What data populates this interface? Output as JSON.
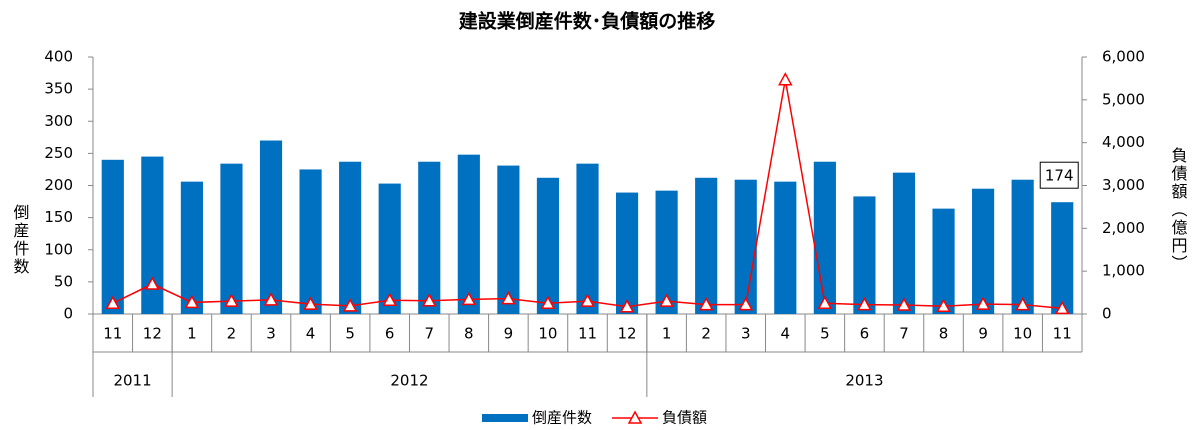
{
  "chart_data": {
    "type": "bar_line",
    "title": "建設業倒産件数･負債額の推移",
    "y_label": "倒産件数",
    "y2_label": "負債額（億円）",
    "categories": [
      "11",
      "12",
      "1",
      "2",
      "3",
      "4",
      "5",
      "6",
      "7",
      "8",
      "9",
      "10",
      "11",
      "12",
      "1",
      "2",
      "3",
      "4",
      "5",
      "6",
      "7",
      "8",
      "9",
      "10",
      "11"
    ],
    "x_groups": [
      {
        "label": "2011",
        "count": 2
      },
      {
        "label": "2012",
        "count": 12
      },
      {
        "label": "2013",
        "count": 11
      }
    ],
    "series": [
      {
        "name": "倒産件数",
        "color": "#0070c0",
        "type": "bar",
        "values": [
          240,
          245,
          206,
          234,
          270,
          225,
          237,
          203,
          237,
          248,
          231,
          212,
          234,
          189,
          192,
          212,
          209,
          206,
          237,
          183,
          220,
          164,
          195,
          209,
          174
        ]
      },
      {
        "name": "負債額",
        "color": "#ff0000",
        "type": "line",
        "axis": "y2",
        "values": [
          250,
          700,
          270,
          300,
          330,
          230,
          190,
          320,
          310,
          340,
          360,
          250,
          300,
          170,
          300,
          220,
          220,
          5470,
          250,
          220,
          210,
          180,
          230,
          220,
          130
        ]
      }
    ],
    "annotated_point": 24,
    "ylim": [
      0,
      400
    ],
    "yticks": [
      0,
      50,
      100,
      150,
      200,
      250,
      300,
      350,
      400
    ],
    "y2lim": [
      0,
      6000
    ],
    "y2ticks": [
      0,
      {
        "value": 1000,
        "label": "1,000"
      },
      {
        "value": 2000,
        "label": "2,000"
      },
      {
        "value": 3000,
        "label": "3,000"
      },
      {
        "value": 4000,
        "label": "4,000"
      },
      {
        "value": 5000,
        "label": "5,000"
      },
      {
        "value": 6000,
        "label": "6,000"
      }
    ],
    "legend": "bottom"
  }
}
